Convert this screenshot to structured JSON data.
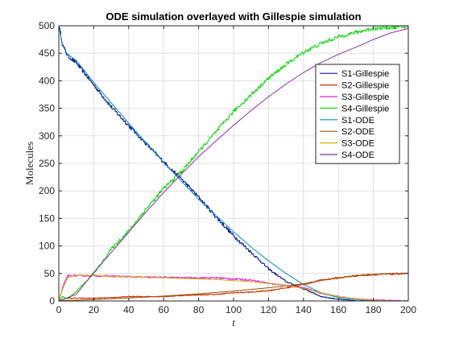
{
  "chart_data": {
    "type": "line",
    "title": "ODE simulation overlayed with Gillespie simulation",
    "xlabel": "t",
    "ylabel": "Molecules",
    "xlim": [
      0,
      200
    ],
    "ylim": [
      0,
      500
    ],
    "xticks": [
      "0",
      "20",
      "40",
      "60",
      "80",
      "100",
      "120",
      "140",
      "160",
      "180",
      "200"
    ],
    "yticks": [
      "0",
      "50",
      "100",
      "150",
      "200",
      "250",
      "300",
      "350",
      "400",
      "450",
      "500"
    ],
    "grid": true,
    "legend_position": "top-right",
    "x": [
      0,
      2,
      5,
      10,
      20,
      30,
      40,
      50,
      60,
      70,
      80,
      90,
      100,
      110,
      120,
      130,
      140,
      150,
      160,
      170,
      180,
      190,
      200
    ],
    "series": [
      {
        "name": "S1-Gillespie",
        "color": "#0b1f8f",
        "style": "gillespie",
        "values": [
          500,
          465,
          445,
          432,
          392,
          352,
          318,
          285,
          252,
          222,
          188,
          152,
          118,
          88,
          58,
          35,
          22,
          8,
          3,
          0,
          0,
          0,
          0
        ]
      },
      {
        "name": "S2-Gillespie",
        "color": "#c83200",
        "style": "gillespie",
        "values": [
          0,
          3,
          5,
          5,
          5,
          6,
          8,
          8,
          8,
          10,
          11,
          12,
          15,
          16,
          19,
          24,
          30,
          38,
          42,
          46,
          48,
          49,
          50
        ]
      },
      {
        "name": "S3-Gillespie",
        "color": "#e020e0",
        "style": "gillespie",
        "values": [
          0,
          25,
          46,
          46,
          46,
          45,
          44,
          43,
          43,
          42,
          42,
          42,
          40,
          38,
          32,
          28,
          24,
          14,
          8,
          4,
          2,
          1,
          0
        ]
      },
      {
        "name": "S4-Gillespie",
        "color": "#1ed81e",
        "style": "gillespie",
        "values": [
          0,
          8,
          4,
          18,
          50,
          95,
          128,
          168,
          205,
          235,
          272,
          308,
          345,
          375,
          405,
          430,
          452,
          468,
          480,
          488,
          495,
          497,
          498
        ]
      },
      {
        "name": "S1-ODE",
        "color": "#0a8fb8",
        "style": "ode",
        "values": [
          500,
          465,
          448,
          437,
          397,
          360,
          323,
          287,
          252,
          218,
          185,
          155,
          126,
          98,
          73,
          50,
          30,
          15,
          6,
          2,
          0.5,
          0.1,
          0
        ]
      },
      {
        "name": "S2-ODE",
        "color": "#a0520a",
        "style": "ode",
        "values": [
          0,
          0.5,
          1,
          1.5,
          2.5,
          4,
          5.5,
          7,
          9,
          11,
          13,
          15.5,
          18,
          21,
          24,
          27.5,
          31.5,
          37,
          42,
          46,
          48.5,
          49.6,
          50
        ]
      },
      {
        "name": "S3-ODE",
        "color": "#d4b000",
        "style": "ode",
        "values": [
          0,
          20,
          42,
          47,
          46,
          45,
          44,
          43,
          42,
          41,
          40,
          39,
          37,
          35,
          32,
          28,
          23,
          15,
          8,
          4,
          1.5,
          0.4,
          0
        ]
      },
      {
        "name": "S4-ODE",
        "color": "#8a2fa0",
        "style": "ode",
        "values": [
          0,
          2,
          6,
          12,
          52,
          88,
          125,
          162,
          197,
          230,
          262,
          291,
          319,
          346,
          371,
          394,
          415,
          433,
          448,
          461,
          475,
          487,
          495
        ]
      }
    ]
  }
}
